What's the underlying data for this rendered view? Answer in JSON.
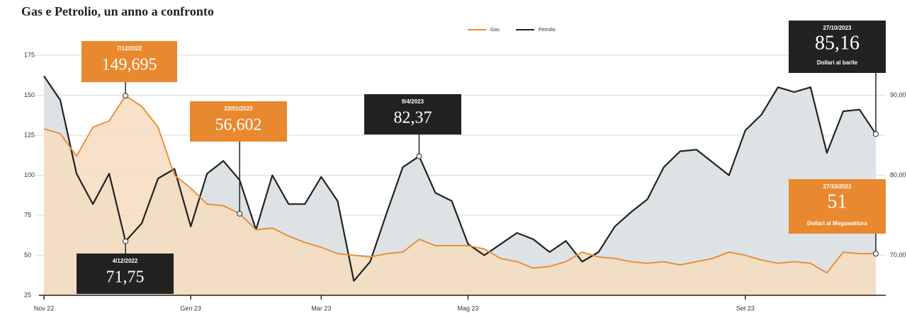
{
  "chart_data": {
    "type": "area-line",
    "title": "Gas e Petrolio, un anno a confronto",
    "categories": [
      "Nov 22",
      null,
      null,
      null,
      null,
      null,
      null,
      null,
      null,
      "Gen 23",
      null,
      null,
      null,
      null,
      null,
      null,
      null,
      "Mar 23",
      null,
      null,
      null,
      null,
      null,
      null,
      null,
      null,
      "Mag 23",
      null,
      null,
      null,
      null,
      null,
      null,
      null,
      null,
      null,
      null,
      null,
      null,
      null,
      null,
      null,
      null,
      "Set 23",
      null,
      null,
      null,
      null,
      null,
      null,
      null,
      null
    ],
    "series": [
      {
        "name": "Gas",
        "color": "#e8892f",
        "fill": "#f6dcc0",
        "axis": "y",
        "values": [
          129,
          126,
          112,
          130,
          134,
          149.695,
          143,
          130,
          100,
          92,
          82,
          81,
          76,
          66,
          67,
          62,
          58,
          55,
          51,
          50,
          49,
          51,
          52,
          60,
          56,
          56,
          56,
          54,
          48,
          46,
          42,
          43,
          46,
          52,
          49,
          48,
          46,
          45,
          46,
          44,
          46,
          48,
          52,
          50,
          47,
          45,
          46,
          45,
          39,
          52,
          51,
          51
        ]
      },
      {
        "name": "Petrolio",
        "color": "#222222",
        "fill": "#dde2e4",
        "axis": "y2",
        "values": [
          92.4,
          89.4,
          80.2,
          76.4,
          80.2,
          71.75,
          74,
          79.6,
          80.8,
          73.6,
          80.2,
          81.8,
          79.4,
          73.2,
          80,
          76.4,
          76.4,
          79.8,
          76.8,
          66.8,
          69.2,
          75.2,
          81,
          82.37,
          77.8,
          76.8,
          71.4,
          70,
          71.4,
          72.8,
          72,
          70.4,
          71.8,
          69.2,
          70.4,
          73.6,
          75.4,
          77,
          81,
          83,
          83.2,
          81.6,
          80,
          85.6,
          87.6,
          91,
          90.4,
          91,
          82.8,
          88,
          88.2,
          85.16
        ]
      }
    ],
    "ylim": [
      25,
      175
    ],
    "yticks": [
      25,
      50,
      75,
      100,
      125,
      150,
      175
    ],
    "y2lim": [
      65,
      95
    ],
    "y2ticks": [
      {
        "value": 70,
        "label": "70,00"
      },
      {
        "value": 80,
        "label": "80,00"
      },
      {
        "value": 90,
        "label": "90,00"
      }
    ],
    "grid": true,
    "legend": "top",
    "annotations": [
      {
        "date": "7/12/2022",
        "value": "149,695",
        "color": "#e8892f"
      },
      {
        "date": "4/12/2022",
        "value": "71,75",
        "color": "#222222"
      },
      {
        "date": "23/01/2023",
        "value": "56,602",
        "color": "#e8892f"
      },
      {
        "date": "9/4/2023",
        "value": "82,37",
        "color": "#222222"
      },
      {
        "date": "27/10/2023",
        "value": "85,16",
        "unit": "Dollari al barile",
        "color": "#222222"
      },
      {
        "date": "27/10/2023",
        "value": "51",
        "unit": "Dollari al Megawattora",
        "color": "#e8892f"
      }
    ]
  }
}
